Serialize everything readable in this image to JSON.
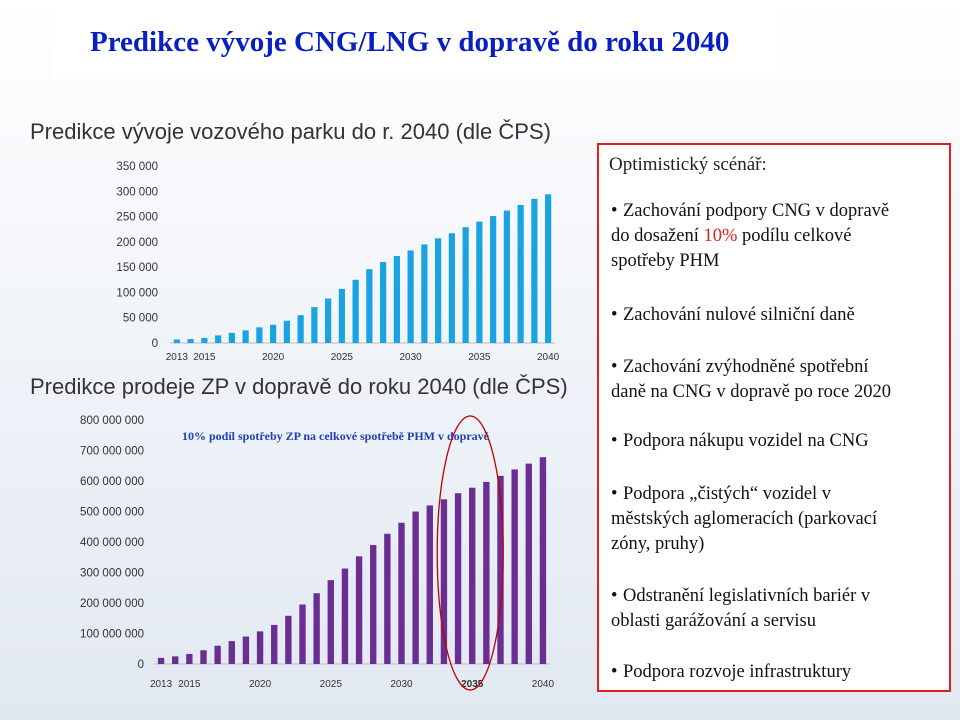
{
  "slide": {
    "title": "Predikce vývoje CNG/LNG v dopravě do roku 2040"
  },
  "chart_data": [
    {
      "type": "bar",
      "title": "Predikce vývoje vozového parku do r. 2040 (dle ČPS)",
      "color": "#1aa3e0",
      "ylim": [
        0,
        350000
      ],
      "yticks": [
        "0",
        "50 000",
        "100 000",
        "150 000",
        "200 000",
        "250 000",
        "300 000",
        "350 000"
      ],
      "xticks": [
        "2013",
        "2015",
        "2020",
        "2025",
        "2030",
        "2035",
        "2040"
      ],
      "categories": [
        2013,
        2014,
        2015,
        2016,
        2017,
        2018,
        2019,
        2020,
        2021,
        2022,
        2023,
        2024,
        2025,
        2026,
        2027,
        2028,
        2029,
        2030,
        2031,
        2032,
        2033,
        2034,
        2035,
        2036,
        2037,
        2038,
        2039,
        2040
      ],
      "values": [
        7000,
        8000,
        10000,
        15000,
        20000,
        25000,
        31000,
        36000,
        44000,
        55000,
        71000,
        88000,
        107000,
        125000,
        146000,
        160000,
        172000,
        183000,
        195000,
        207000,
        217000,
        229000,
        240000,
        251000,
        262000,
        273000,
        285000,
        294000
      ]
    },
    {
      "type": "bar",
      "title": "Predikce prodeje ZP v dopravě do roku 2040 (dle ČPS)",
      "color": "#6a2d91",
      "ylim": [
        0,
        800000000
      ],
      "yticks": [
        "0",
        "100 000 000",
        "200 000 000",
        "300 000 000",
        "400 000 000",
        "500 000 000",
        "600 000 000",
        "700 000 000",
        "800 000 000"
      ],
      "xticks": [
        "2013",
        "2015",
        "2020",
        "2025",
        "2030",
        "2035",
        "2040"
      ],
      "highlight_tick": "2035",
      "annotation": "10% podíl spotřeby ZP na celkové spotřebě PHM v dopravě",
      "categories": [
        2013,
        2014,
        2015,
        2016,
        2017,
        2018,
        2019,
        2020,
        2021,
        2022,
        2023,
        2024,
        2025,
        2026,
        2027,
        2028,
        2029,
        2030,
        2031,
        2032,
        2033,
        2034,
        2035,
        2036,
        2037,
        2038,
        2039,
        2040
      ],
      "values": [
        20000000,
        25000000,
        33000000,
        45000000,
        60000000,
        75000000,
        90000000,
        107000000,
        128000000,
        158000000,
        195000000,
        232000000,
        275000000,
        313000000,
        353000000,
        390000000,
        427000000,
        463000000,
        500000000,
        520000000,
        540000000,
        560000000,
        578000000,
        597000000,
        617000000,
        638000000,
        657000000,
        678000000
      ]
    }
  ],
  "scenario": {
    "heading": "Optimistický scénář:",
    "b1_a": "Zachování podpory CNG v dopravě",
    "b1_b": "do dosažení ",
    "b1_red": "10%",
    "b1_c": " podílu celkové",
    "b1_d": "spotřeby PHM",
    "b2": "Zachování nulové silniční daně",
    "b3_a": "Zachování zvýhodněné spotřební",
    "b3_b": "daně na CNG v dopravě po roce 2020",
    "b4": "Podpora nákupu vozidel na CNG",
    "b5_a": "Podpora „čistých“ vozidel v",
    "b5_b": "městských aglomeracích (parkovací",
    "b5_c": "zóny, pruhy)",
    "b6_a": "Odstranění legislativních bariér v",
    "b6_b": "oblasti garážování a servisu",
    "b7": "Podpora rozvoje infrastruktury",
    "bullet_char": "•",
    "border_color": "#e02020"
  }
}
